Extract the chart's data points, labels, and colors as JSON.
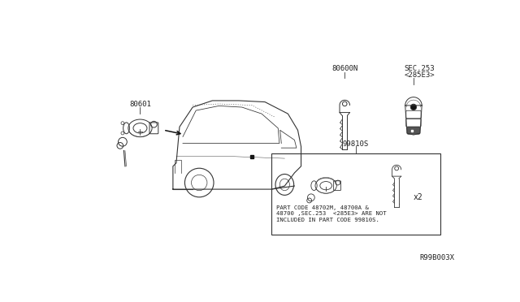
{
  "background_color": "#ffffff",
  "diagram_ref": "R99B003X",
  "label_80601": "80601",
  "label_80600N": "80600N",
  "label_sec253": "SEC.253",
  "label_sec253b": "<285E3>",
  "label_99810S": "99810S",
  "note_line1": "PART CODE 48702M, 48700A &",
  "note_line2": "48700 ,SEC.253  <285E3> ARE NOT",
  "note_line3": "INCLUDED IN PART CODE 99810S.",
  "x2_label": "x2",
  "fig_width": 6.4,
  "fig_height": 3.72,
  "line_color": "#333333",
  "text_color": "#222222"
}
